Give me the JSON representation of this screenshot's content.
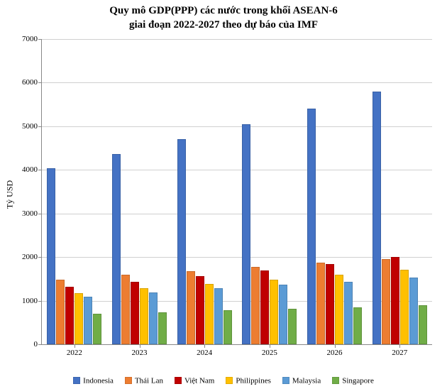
{
  "chart": {
    "type": "bar",
    "title_line1": "Quy mô GDP(PPP) các nước trong khối ASEAN-6",
    "title_line2": "giai đoạn 2022-2027 theo dự báo của IMF",
    "title_fontsize": 15,
    "title_font": "Times New Roman",
    "title_weight": "bold",
    "ylabel": "Tỷ USD",
    "label_fontsize": 12,
    "tick_fontsize": 11,
    "background_color": "#ffffff",
    "grid_color": "#d0d0d0",
    "axis_color": "#888888",
    "ylim": [
      0,
      7000
    ],
    "ytick_step": 1000,
    "yticks": [
      0,
      1000,
      2000,
      3000,
      4000,
      5000,
      6000,
      7000
    ],
    "categories": [
      "2022",
      "2023",
      "2024",
      "2025",
      "2026",
      "2027"
    ],
    "series": [
      {
        "name": "Indonesia",
        "color": "#4472c4",
        "values": [
          4030,
          4370,
          4710,
          5050,
          5400,
          5790
        ]
      },
      {
        "name": "Thái Lan",
        "color": "#ed7d31",
        "values": [
          1480,
          1590,
          1680,
          1770,
          1870,
          1960
        ]
      },
      {
        "name": "Việt Nam",
        "color": "#c00000",
        "values": [
          1320,
          1440,
          1560,
          1690,
          1840,
          2000
        ]
      },
      {
        "name": "Philippines",
        "color": "#ffc000",
        "values": [
          1170,
          1280,
          1380,
          1480,
          1590,
          1710
        ]
      },
      {
        "name": "Malaysia",
        "color": "#5b9bd5",
        "values": [
          1090,
          1190,
          1280,
          1360,
          1440,
          1530
        ]
      },
      {
        "name": "Singapore",
        "color": "#70ad47",
        "values": [
          700,
          740,
          780,
          820,
          850,
          890
        ]
      }
    ],
    "legend_position": "bottom",
    "bar_group_inner_padding_pct": 8
  }
}
